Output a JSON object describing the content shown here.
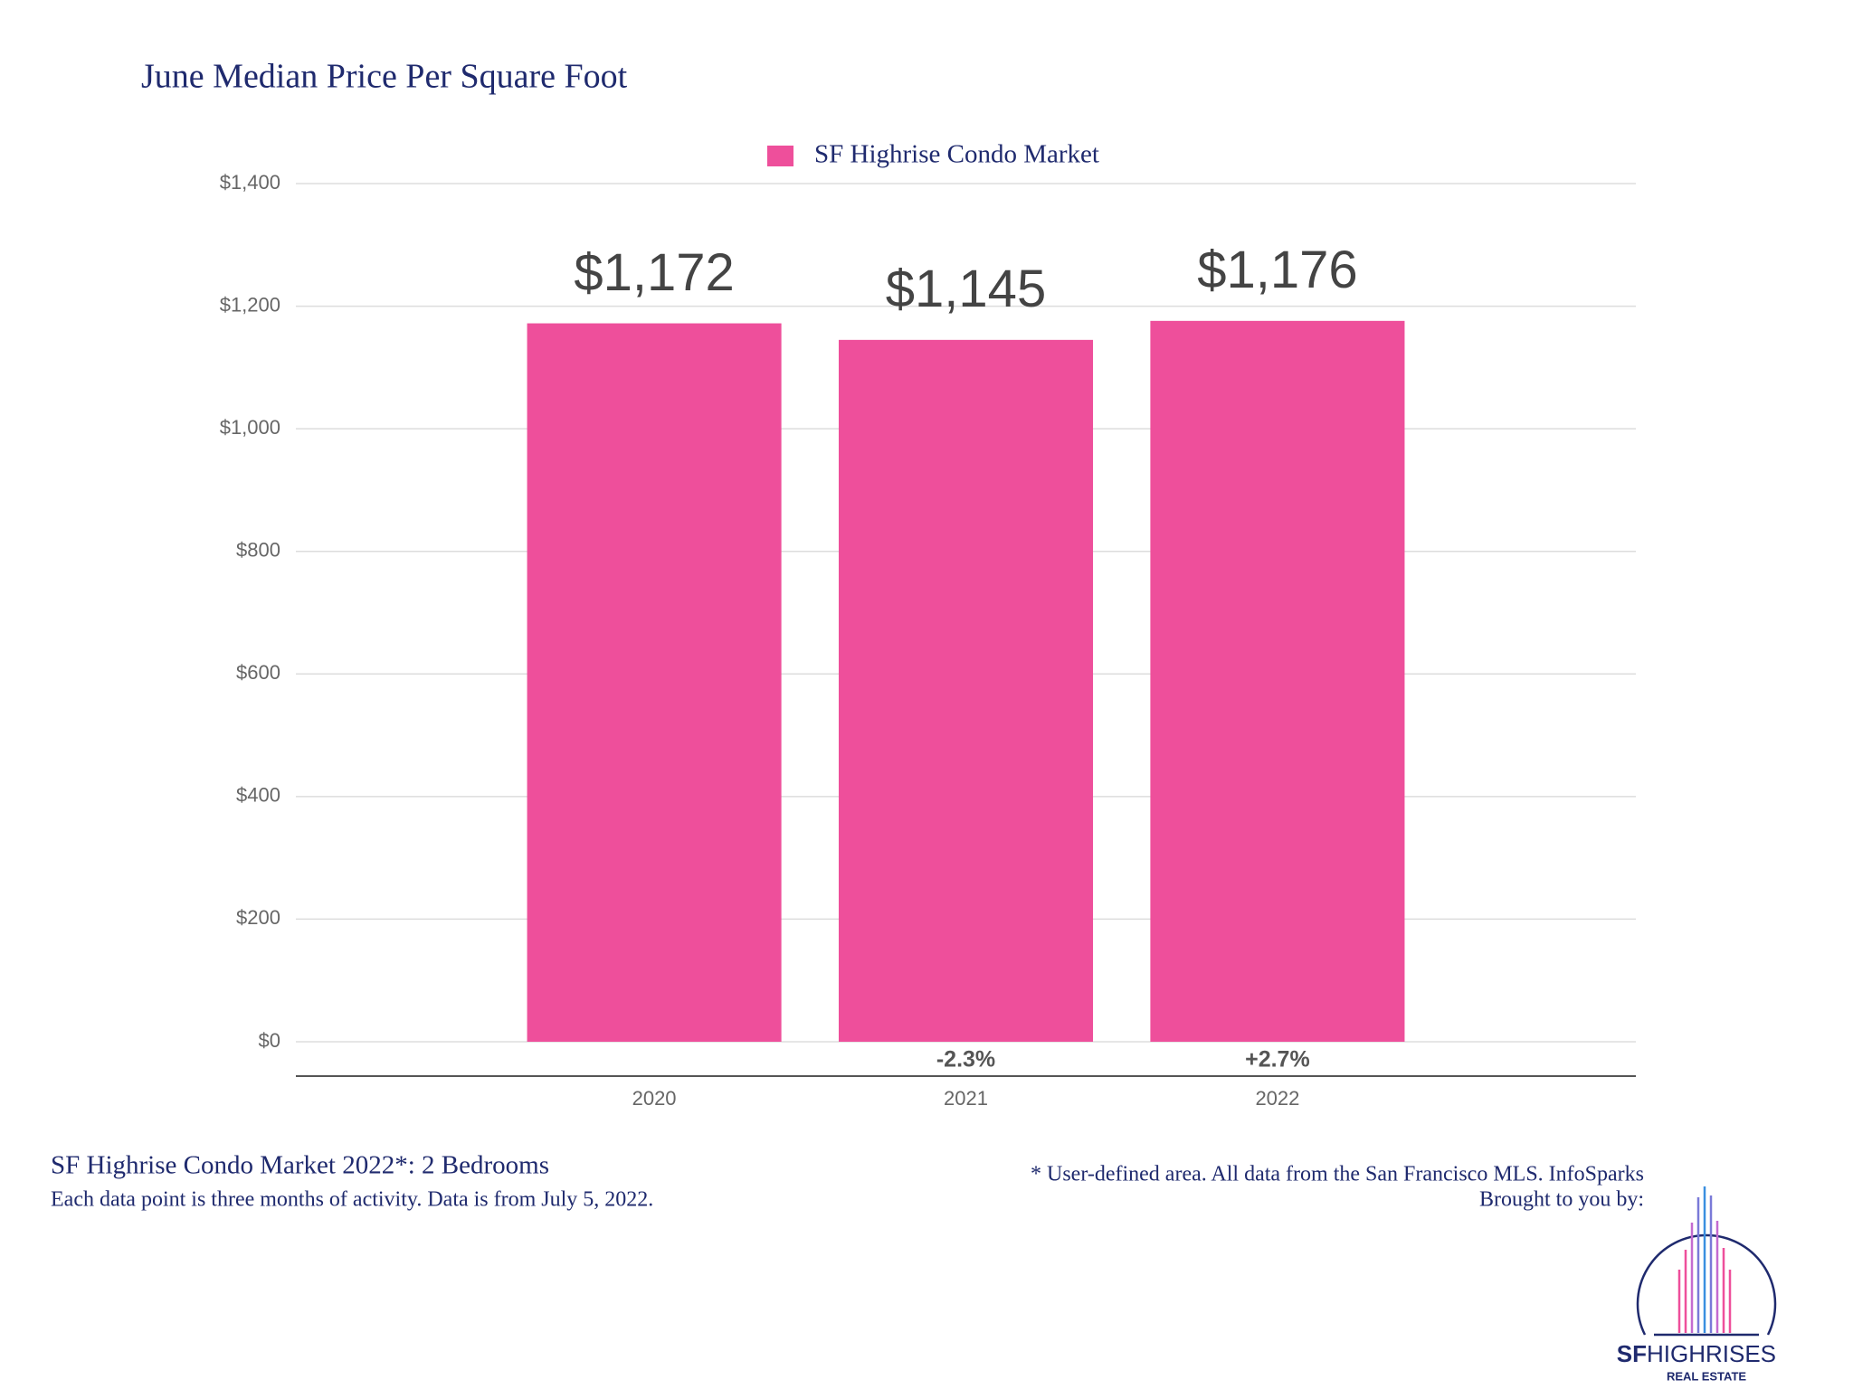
{
  "chart_data": {
    "type": "bar",
    "title": "June Median Price Per Square Foot",
    "categories": [
      "2020",
      "2021",
      "2022"
    ],
    "series": [
      {
        "name": "SF Highrise Condo Market",
        "color": "#ee4f9b",
        "values": [
          1172,
          1145,
          1176
        ],
        "value_labels": [
          "$1,172",
          "$1,145",
          "$1,176"
        ]
      }
    ],
    "change_labels": [
      null,
      "-2.3%",
      "+2.7%"
    ],
    "ylim": [
      0,
      1400
    ],
    "yticks": [
      {
        "value": 0,
        "label": "$0"
      },
      {
        "value": 200,
        "label": "$200"
      },
      {
        "value": 400,
        "label": "$400"
      },
      {
        "value": 600,
        "label": "$600"
      },
      {
        "value": 800,
        "label": "$800"
      },
      {
        "value": 1000,
        "label": "$1,000"
      },
      {
        "value": 1200,
        "label": "$1,200"
      },
      {
        "value": 1400,
        "label": "$1,400"
      }
    ],
    "grid": true,
    "legend": "top"
  },
  "footer": {
    "subtitle": "SF Highrise Condo Market 2022*: 2 Bedrooms",
    "note": "Each data point is three months of activity. Data is from July 5, 2022.",
    "source": "* User-defined area. All data from the San Francisco MLS. InfoSparks",
    "credit": "Brought to you by:"
  },
  "logo": {
    "brand_a": "SF",
    "brand_b": "HIGHRISES",
    "tagline": "REAL ESTATE"
  }
}
